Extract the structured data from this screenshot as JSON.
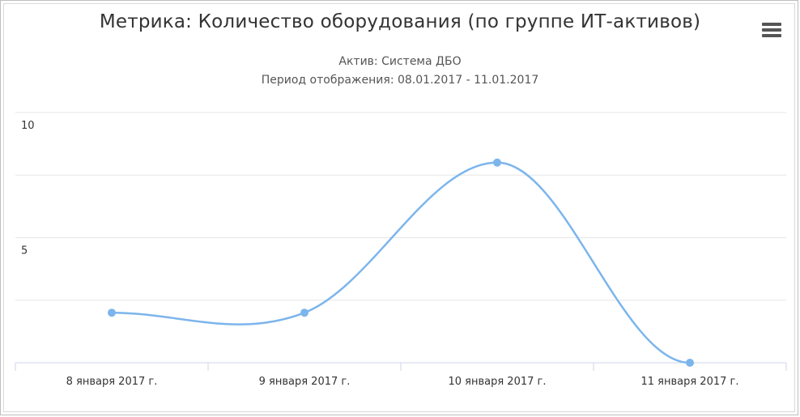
{
  "chart_data": {
    "type": "line",
    "title": "Метрика: Количество оборудования (по группе ИТ-активов)",
    "subtitle": [
      "Актив: Система ДБО",
      "Период отображения: 08.01.2017 - 11.01.2017"
    ],
    "categories": [
      "8 января 2017 г.",
      "9 января 2017 г.",
      "10 января 2017 г.",
      "11 января 2017 г."
    ],
    "series": [
      {
        "values": [
          2,
          2,
          8,
          0
        ]
      }
    ],
    "ylim": [
      0,
      10
    ],
    "yticks": [
      0,
      2.5,
      5,
      7.5,
      10
    ],
    "ytick_labels_shown": [
      "5",
      "10"
    ],
    "xlabel": "",
    "ylabel": "",
    "smooth": true,
    "grid": true,
    "legend": "none",
    "colors": {
      "series": "#7cb5ec",
      "grid": "#e6e6e6",
      "axis": "#ccd6eb",
      "text": "#333333"
    }
  },
  "menu": {
    "icon": "hamburger-menu-icon"
  }
}
